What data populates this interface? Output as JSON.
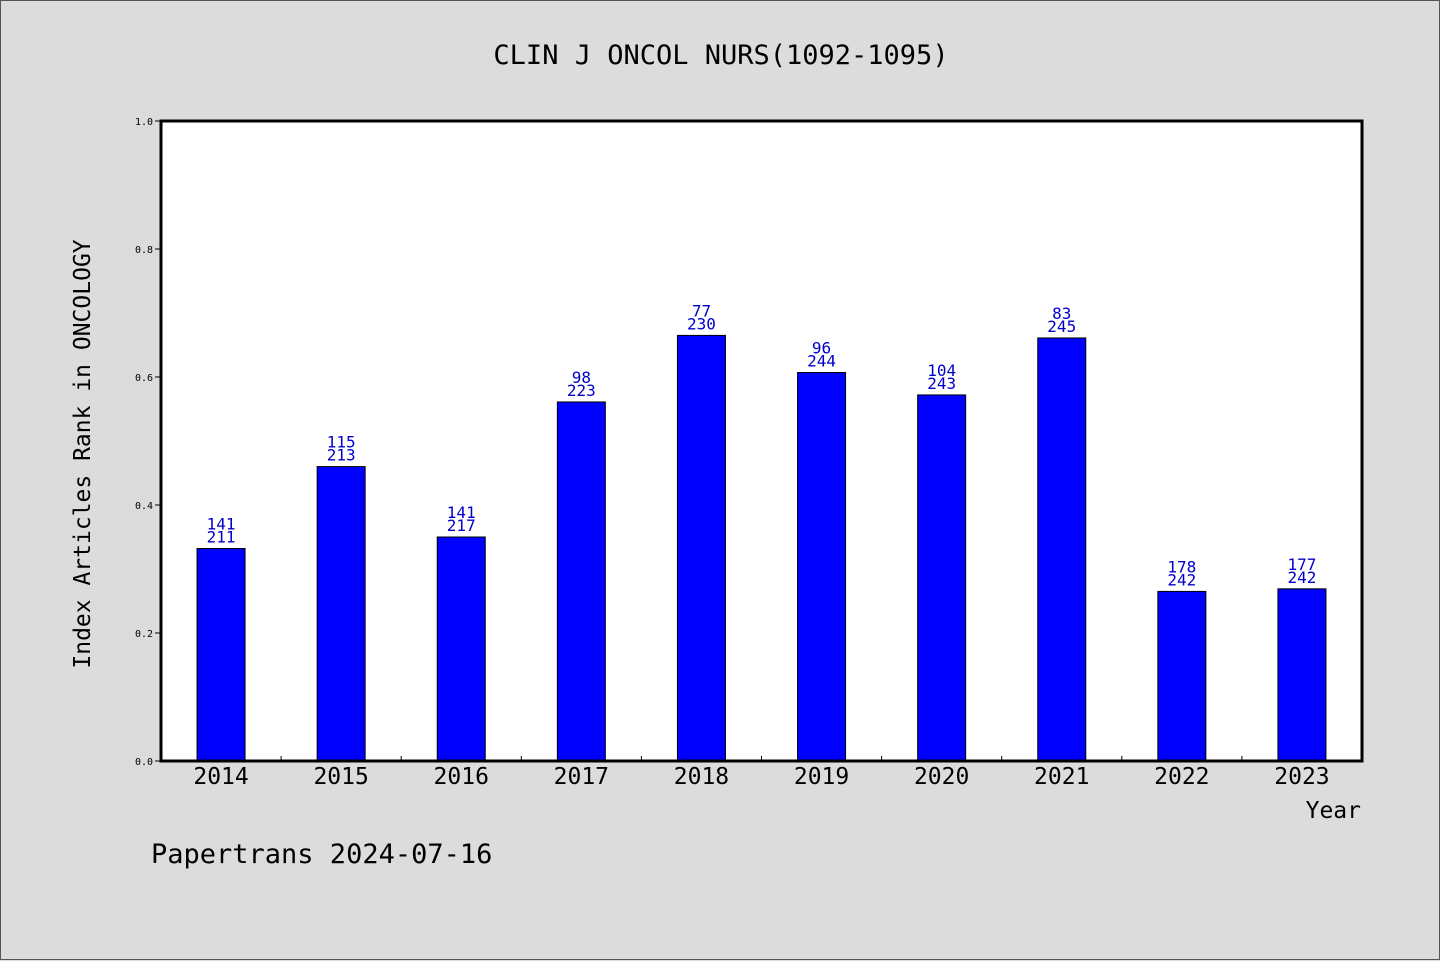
{
  "chart_data": {
    "type": "bar",
    "title": "CLIN J ONCOL NURS(1092-1095)",
    "xlabel": "Year",
    "ylabel": "Index Articles Rank in ONCOLOGY",
    "ylim": [
      0,
      1.0
    ],
    "yticks": [
      "0.0",
      "0.2",
      "0.4",
      "0.6",
      "0.8",
      "1.0"
    ],
    "categories": [
      "2014",
      "2015",
      "2016",
      "2017",
      "2018",
      "2019",
      "2020",
      "2021",
      "2022",
      "2023"
    ],
    "values": [
      0.332,
      0.46,
      0.35,
      0.561,
      0.665,
      0.607,
      0.572,
      0.661,
      0.265,
      0.269
    ],
    "rank": [
      "141",
      "115",
      "141",
      "98",
      "77",
      "96",
      "104",
      "83",
      "178",
      "177"
    ],
    "total": [
      "211",
      "213",
      "217",
      "223",
      "230",
      "244",
      "243",
      "245",
      "242",
      "242"
    ],
    "bar_color": "#0000ff",
    "label_color": "#0000cc",
    "grid": false
  },
  "footer": {
    "text": "Papertrans 2024-07-16"
  }
}
